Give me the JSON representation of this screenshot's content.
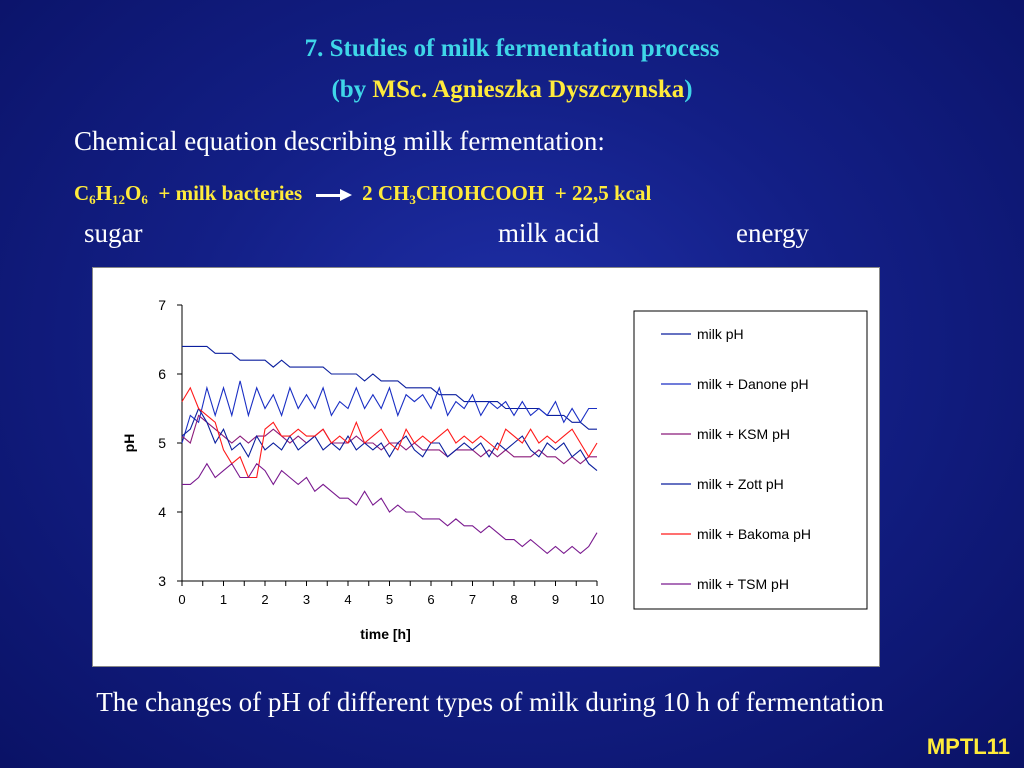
{
  "title_line1": "7. Studies of milk fermentation process",
  "title_line2_open": "(by ",
  "title_line2_name": "MSc. Agnieszka Dyszczynska",
  "title_line2_close": ")",
  "subtitle": "Chemical equation describing milk fermentation:",
  "equation": {
    "c": "C",
    "c_n": "6",
    "h": "H",
    "h_n": "12",
    "o": "O",
    "o_n": "6",
    "plus_bacteria": "+ milk bacteries",
    "product_prefix": "2 CH",
    "product_n": "3",
    "product_suffix": "CHOHCOOH",
    "plus_energy": "+ 22,5 kcal"
  },
  "labels": {
    "sugar": "sugar",
    "acid": "milk acid",
    "energy": "energy"
  },
  "caption": "The changes of pH of different types of milk during 10 h of fermentation",
  "badge": "MPTL11",
  "colors": {
    "title": "#3fd6e8",
    "highlight": "#ffeb3b",
    "text": "#ffffff",
    "background": "#131f86"
  },
  "chart_data": {
    "type": "line",
    "xlabel": "time [h]",
    "ylabel": "pH",
    "xlim": [
      0,
      10
    ],
    "ylim": [
      3,
      7
    ],
    "x_ticks": [
      0,
      1,
      2,
      3,
      4,
      5,
      6,
      7,
      8,
      9,
      10
    ],
    "y_ticks": [
      3,
      4,
      5,
      6,
      7
    ],
    "legend_position": "right",
    "x": [
      0,
      0.2,
      0.4,
      0.6,
      0.8,
      1,
      1.2,
      1.4,
      1.6,
      1.8,
      2,
      2.2,
      2.4,
      2.6,
      2.8,
      3,
      3.2,
      3.4,
      3.6,
      3.8,
      4,
      4.2,
      4.4,
      4.6,
      4.8,
      5,
      5.2,
      5.4,
      5.6,
      5.8,
      6,
      6.2,
      6.4,
      6.6,
      6.8,
      7,
      7.2,
      7.4,
      7.6,
      7.8,
      8,
      8.2,
      8.4,
      8.6,
      8.8,
      9,
      9.2,
      9.4,
      9.6,
      9.8,
      10
    ],
    "series": [
      {
        "name": "milk pH",
        "color": "#0b1f9e",
        "values": [
          6.4,
          6.4,
          6.4,
          6.4,
          6.3,
          6.3,
          6.3,
          6.2,
          6.2,
          6.2,
          6.2,
          6.1,
          6.2,
          6.1,
          6.1,
          6.1,
          6.1,
          6.1,
          6.0,
          6.0,
          6.0,
          6.0,
          5.9,
          6.0,
          5.9,
          5.9,
          5.9,
          5.8,
          5.8,
          5.8,
          5.8,
          5.7,
          5.7,
          5.7,
          5.6,
          5.6,
          5.6,
          5.6,
          5.6,
          5.5,
          5.5,
          5.5,
          5.5,
          5.5,
          5.4,
          5.4,
          5.4,
          5.3,
          5.3,
          5.2,
          5.2
        ]
      },
      {
        "name": "milk + Danone pH",
        "color": "#1a2fc4",
        "values": [
          5.0,
          5.4,
          5.3,
          5.8,
          5.4,
          5.8,
          5.4,
          5.9,
          5.4,
          5.8,
          5.5,
          5.7,
          5.4,
          5.8,
          5.5,
          5.7,
          5.5,
          5.8,
          5.4,
          5.6,
          5.5,
          5.8,
          5.5,
          5.7,
          5.5,
          5.8,
          5.4,
          5.7,
          5.6,
          5.7,
          5.5,
          5.8,
          5.4,
          5.6,
          5.5,
          5.7,
          5.4,
          5.6,
          5.5,
          5.6,
          5.4,
          5.6,
          5.4,
          5.5,
          5.4,
          5.6,
          5.3,
          5.5,
          5.3,
          5.5,
          5.5
        ]
      },
      {
        "name": "milk + KSM pH",
        "color": "#8b1a7a",
        "values": [
          5.1,
          5.0,
          5.4,
          5.3,
          5.2,
          5.1,
          5.0,
          5.1,
          5.0,
          5.1,
          5.1,
          5.2,
          5.1,
          5.0,
          5.1,
          5.0,
          5.1,
          5.2,
          5.0,
          5.0,
          5.0,
          5.1,
          5.0,
          5.0,
          4.9,
          5.0,
          5.0,
          4.9,
          5.0,
          4.9,
          4.9,
          4.9,
          4.8,
          4.9,
          4.9,
          4.9,
          4.8,
          4.9,
          4.8,
          4.9,
          4.8,
          4.8,
          4.8,
          4.9,
          4.8,
          4.8,
          4.7,
          4.8,
          4.7,
          4.8,
          4.8
        ]
      },
      {
        "name": "milk + Zott pH",
        "color": "#0b1f9e",
        "values": [
          5.1,
          5.2,
          5.5,
          5.3,
          5.0,
          5.2,
          4.9,
          5.0,
          4.8,
          5.1,
          4.9,
          5.0,
          4.9,
          5.1,
          4.9,
          5.0,
          5.1,
          4.9,
          5.0,
          4.9,
          5.1,
          4.9,
          5.0,
          4.9,
          5.0,
          4.8,
          5.0,
          5.1,
          4.9,
          4.8,
          5.0,
          5.0,
          4.8,
          4.9,
          5.0,
          4.9,
          5.0,
          4.8,
          5.0,
          4.9,
          5.0,
          5.1,
          4.9,
          4.8,
          5.0,
          4.9,
          5.0,
          4.8,
          4.9,
          4.7,
          4.6
        ]
      },
      {
        "name": "milk + Bakoma pH",
        "color": "#ff1a1a",
        "values": [
          5.6,
          5.8,
          5.5,
          5.4,
          5.3,
          4.9,
          4.7,
          4.8,
          4.5,
          4.5,
          5.2,
          5.3,
          5.1,
          5.1,
          5.2,
          5.1,
          5.1,
          5.2,
          5.0,
          5.1,
          5.0,
          5.3,
          5.0,
          5.1,
          5.2,
          5.0,
          4.9,
          5.2,
          5.0,
          5.1,
          5.0,
          5.1,
          5.2,
          5.0,
          5.1,
          5.0,
          5.1,
          5.0,
          4.9,
          5.2,
          5.1,
          5.0,
          5.2,
          5.0,
          5.1,
          5.0,
          5.1,
          5.2,
          5.0,
          4.8,
          5.0
        ]
      },
      {
        "name": "milk + TSM pH",
        "color": "#7a1a8f",
        "values": [
          4.4,
          4.4,
          4.5,
          4.7,
          4.5,
          4.6,
          4.7,
          4.5,
          4.5,
          4.7,
          4.6,
          4.4,
          4.6,
          4.5,
          4.4,
          4.5,
          4.3,
          4.4,
          4.3,
          4.2,
          4.2,
          4.1,
          4.3,
          4.1,
          4.2,
          4.0,
          4.1,
          4.0,
          4.0,
          3.9,
          3.9,
          3.9,
          3.8,
          3.9,
          3.8,
          3.8,
          3.7,
          3.8,
          3.7,
          3.6,
          3.6,
          3.5,
          3.6,
          3.5,
          3.4,
          3.5,
          3.4,
          3.5,
          3.4,
          3.5,
          3.7
        ]
      }
    ]
  }
}
